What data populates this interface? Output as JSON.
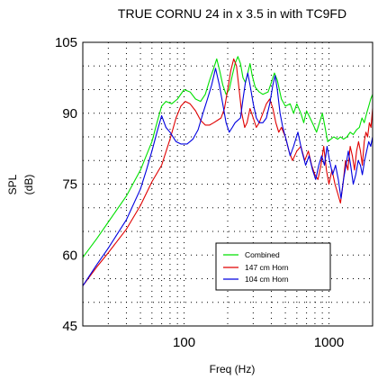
{
  "chart_data": {
    "type": "line",
    "title": "TRUE CORNU 24 in x 3.5 in with TC9FD",
    "xlabel": "Freq (Hz)",
    "ylabel_line1": "SPL",
    "ylabel_line2": "(dB)",
    "x_scale": "log",
    "xlim": [
      20,
      2000
    ],
    "ylim": [
      45,
      105
    ],
    "y_ticks": [
      "45",
      "60",
      "75",
      "90",
      "105"
    ],
    "x_ticks": [
      {
        "value": 100,
        "label": "100"
      },
      {
        "value": 1000,
        "label": "1000"
      }
    ],
    "grid": true,
    "legend_position": "lower-right",
    "series": [
      {
        "name": "Combined",
        "color": "#00e000",
        "points": [
          [
            20,
            59.5
          ],
          [
            25,
            63.5
          ],
          [
            30,
            67
          ],
          [
            40,
            72.5
          ],
          [
            50,
            78
          ],
          [
            60,
            84
          ],
          [
            65,
            88
          ],
          [
            70,
            91.5
          ],
          [
            75,
            92.5
          ],
          [
            82,
            92
          ],
          [
            90,
            93
          ],
          [
            100,
            95
          ],
          [
            110,
            94.5
          ],
          [
            120,
            93
          ],
          [
            130,
            92.5
          ],
          [
            140,
            94
          ],
          [
            150,
            97
          ],
          [
            160,
            99.5
          ],
          [
            168,
            101.5
          ],
          [
            176,
            99
          ],
          [
            185,
            96
          ],
          [
            195,
            94
          ],
          [
            205,
            95
          ],
          [
            215,
            98
          ],
          [
            225,
            100.5
          ],
          [
            235,
            102
          ],
          [
            245,
            100.5
          ],
          [
            255,
            97.5
          ],
          [
            265,
            96.5
          ],
          [
            275,
            98.5
          ],
          [
            285,
            100.5
          ],
          [
            295,
            98
          ],
          [
            310,
            95.5
          ],
          [
            330,
            94.5
          ],
          [
            350,
            94
          ],
          [
            380,
            94.5
          ],
          [
            400,
            96.5
          ],
          [
            420,
            98.5
          ],
          [
            440,
            97
          ],
          [
            470,
            93
          ],
          [
            500,
            91.5
          ],
          [
            540,
            92
          ],
          [
            570,
            90
          ],
          [
            600,
            92
          ],
          [
            640,
            90
          ],
          [
            670,
            88
          ],
          [
            700,
            90.5
          ],
          [
            740,
            89
          ],
          [
            780,
            87.5
          ],
          [
            820,
            86
          ],
          [
            860,
            88
          ],
          [
            900,
            90
          ],
          [
            940,
            87
          ],
          [
            980,
            84
          ],
          [
            1030,
            84.5
          ],
          [
            1080,
            85
          ],
          [
            1150,
            84.5
          ],
          [
            1200,
            85
          ],
          [
            1260,
            84.5
          ],
          [
            1330,
            85
          ],
          [
            1400,
            86
          ],
          [
            1470,
            85.5
          ],
          [
            1550,
            86.5
          ],
          [
            1620,
            87
          ],
          [
            1690,
            89
          ],
          [
            1750,
            88
          ],
          [
            1820,
            90
          ],
          [
            1880,
            91.5
          ],
          [
            1940,
            93
          ],
          [
            2000,
            94
          ]
        ]
      },
      {
        "name": "147 cm Horn",
        "color": "#e00000",
        "points": [
          [
            20,
            53.5
          ],
          [
            25,
            57.5
          ],
          [
            30,
            60.5
          ],
          [
            40,
            65.5
          ],
          [
            50,
            70.5
          ],
          [
            60,
            75.5
          ],
          [
            70,
            79
          ],
          [
            80,
            84.5
          ],
          [
            88,
            89
          ],
          [
            95,
            91.5
          ],
          [
            102,
            92.5
          ],
          [
            110,
            92
          ],
          [
            120,
            90.5
          ],
          [
            130,
            88.5
          ],
          [
            140,
            87.5
          ],
          [
            150,
            87.5
          ],
          [
            160,
            88
          ],
          [
            170,
            88.5
          ],
          [
            180,
            89
          ],
          [
            190,
            91
          ],
          [
            200,
            95
          ],
          [
            210,
            99
          ],
          [
            220,
            101.5
          ],
          [
            230,
            100
          ],
          [
            240,
            95
          ],
          [
            250,
            90
          ],
          [
            262,
            87
          ],
          [
            272,
            88
          ],
          [
            285,
            91
          ],
          [
            300,
            89
          ],
          [
            315,
            87
          ],
          [
            330,
            88
          ],
          [
            350,
            90
          ],
          [
            370,
            92
          ],
          [
            390,
            93
          ],
          [
            410,
            91
          ],
          [
            430,
            88
          ],
          [
            450,
            86
          ],
          [
            470,
            87
          ],
          [
            500,
            85
          ],
          [
            530,
            82
          ],
          [
            560,
            80
          ],
          [
            600,
            82
          ],
          [
            640,
            83
          ],
          [
            680,
            80
          ],
          [
            720,
            82
          ],
          [
            760,
            79
          ],
          [
            800,
            77
          ],
          [
            840,
            76
          ],
          [
            880,
            79
          ],
          [
            920,
            83
          ],
          [
            960,
            78
          ],
          [
            1000,
            75
          ],
          [
            1050,
            78
          ],
          [
            1100,
            75
          ],
          [
            1150,
            73
          ],
          [
            1200,
            71
          ],
          [
            1250,
            75
          ],
          [
            1300,
            80
          ],
          [
            1350,
            78
          ],
          [
            1400,
            83
          ],
          [
            1450,
            81
          ],
          [
            1500,
            78
          ],
          [
            1550,
            82
          ],
          [
            1600,
            84
          ],
          [
            1650,
            82
          ],
          [
            1700,
            79
          ],
          [
            1750,
            84
          ],
          [
            1800,
            86
          ],
          [
            1850,
            85
          ],
          [
            1900,
            88
          ],
          [
            1950,
            87
          ],
          [
            2000,
            91
          ]
        ]
      },
      {
        "name": "104 cm Horn",
        "color": "#0000e0",
        "points": [
          [
            20,
            53.5
          ],
          [
            25,
            58
          ],
          [
            30,
            61.5
          ],
          [
            40,
            67.5
          ],
          [
            50,
            74
          ],
          [
            55,
            78
          ],
          [
            60,
            82
          ],
          [
            65,
            86
          ],
          [
            70,
            89.5
          ],
          [
            75,
            87
          ],
          [
            80,
            86
          ],
          [
            88,
            84
          ],
          [
            95,
            83.5
          ],
          [
            105,
            83.5
          ],
          [
            115,
            84.5
          ],
          [
            125,
            86.5
          ],
          [
            135,
            90
          ],
          [
            145,
            93
          ],
          [
            155,
            96
          ],
          [
            165,
            99.5
          ],
          [
            175,
            96
          ],
          [
            185,
            92
          ],
          [
            195,
            88
          ],
          [
            205,
            86
          ],
          [
            215,
            87
          ],
          [
            225,
            88
          ],
          [
            235,
            88.5
          ],
          [
            245,
            89
          ],
          [
            255,
            93
          ],
          [
            265,
            96.5
          ],
          [
            275,
            98.5
          ],
          [
            285,
            96
          ],
          [
            300,
            92
          ],
          [
            315,
            89
          ],
          [
            330,
            88
          ],
          [
            350,
            88
          ],
          [
            370,
            89
          ],
          [
            390,
            92
          ],
          [
            410,
            96
          ],
          [
            425,
            98
          ],
          [
            440,
            95
          ],
          [
            460,
            90
          ],
          [
            480,
            87
          ],
          [
            510,
            84
          ],
          [
            540,
            81
          ],
          [
            570,
            83
          ],
          [
            610,
            86
          ],
          [
            650,
            82
          ],
          [
            690,
            79
          ],
          [
            730,
            81
          ],
          [
            770,
            78
          ],
          [
            810,
            76
          ],
          [
            850,
            79
          ],
          [
            890,
            81
          ],
          [
            930,
            79
          ],
          [
            970,
            83
          ],
          [
            1010,
            80
          ],
          [
            1060,
            77
          ],
          [
            1110,
            79
          ],
          [
            1160,
            76
          ],
          [
            1210,
            72
          ],
          [
            1260,
            76
          ],
          [
            1310,
            79
          ],
          [
            1360,
            82
          ],
          [
            1410,
            79
          ],
          [
            1470,
            75
          ],
          [
            1530,
            77
          ],
          [
            1590,
            80
          ],
          [
            1650,
            79
          ],
          [
            1700,
            77
          ],
          [
            1760,
            80
          ],
          [
            1820,
            82
          ],
          [
            1880,
            84
          ],
          [
            1940,
            83
          ],
          [
            2000,
            85
          ]
        ]
      }
    ]
  }
}
